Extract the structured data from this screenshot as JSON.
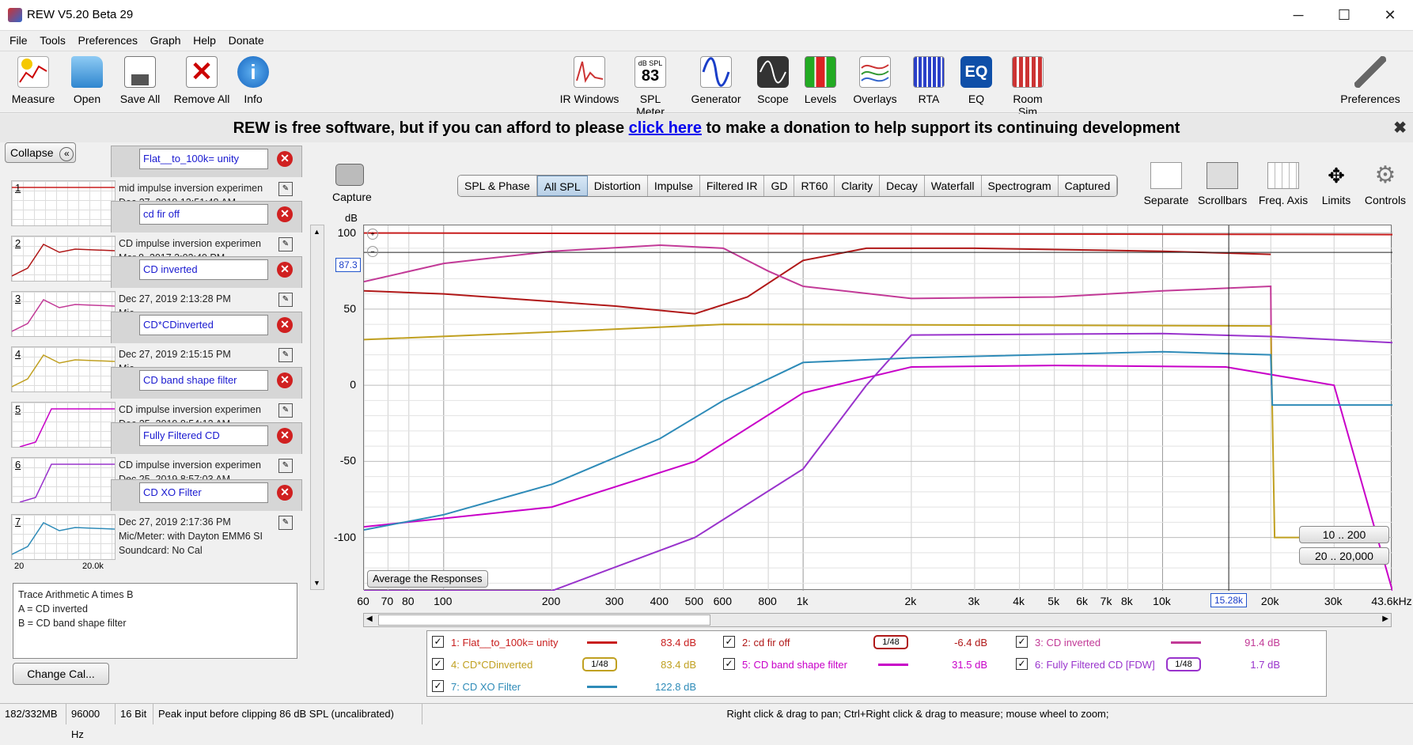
{
  "window": {
    "title": "REW V5.20 Beta 29",
    "minimize": "─",
    "maximize": "☐",
    "close": "✕"
  },
  "menu": [
    "File",
    "Tools",
    "Preferences",
    "Graph",
    "Help",
    "Donate"
  ],
  "toolbar": {
    "left": [
      "Measure",
      "Open",
      "Save All",
      "Remove All",
      "Info"
    ],
    "center": [
      {
        "label": "IR Windows",
        "icon": "ir-windows-icon"
      },
      {
        "label": "SPL Meter",
        "icon": "spl-meter-icon",
        "top": "dB SPL",
        "value": "83"
      },
      {
        "label": "Generator",
        "icon": "generator-icon"
      },
      {
        "label": "Scope",
        "icon": "scope-icon"
      },
      {
        "label": "Levels",
        "icon": "levels-icon"
      },
      {
        "label": "Overlays",
        "icon": "overlays-icon"
      },
      {
        "label": "RTA",
        "icon": "rta-icon"
      },
      {
        "label": "EQ",
        "icon": "eq-icon"
      },
      {
        "label": "Room Sim",
        "icon": "room-sim-icon"
      }
    ],
    "right": "Preferences"
  },
  "donate": {
    "before": "REW is free software, but if you can afford to please",
    "link": "click here",
    "after": "to make a donation to help support its continuing development",
    "close": "✖"
  },
  "panel": {
    "collapse": "Collapse",
    "measurements": [
      {
        "num": "1",
        "name": "Flat__to_100k= unity",
        "l1": "mid impulse inversion experimen",
        "l2": "Dec 27, 2019 12:51:48 AM"
      },
      {
        "num": "2",
        "name": "cd fir off",
        "l1": "CD impulse inversion experimen",
        "l2": "Mar 8, 2017 3:02:40 PM"
      },
      {
        "num": "3",
        "name": "CD inverted",
        "l1": "Dec 27, 2019 2:13:28 PM",
        "l2": "Mic"
      },
      {
        "num": "4",
        "name": "CD*CDinverted",
        "l1": "Dec 27, 2019 2:15:15 PM",
        "l2": "Mic"
      },
      {
        "num": "5",
        "name": "CD band shape filter",
        "l1": "CD impulse inversion experimen",
        "l2": "Dec 25, 2019 8:54:12 AM"
      },
      {
        "num": "6",
        "name": "Fully Filtered CD",
        "l1": "CD impulse inversion experimen",
        "l2": "Dec 25, 2019 8:57:03 AM"
      },
      {
        "num": "7",
        "name": "CD XO Filter",
        "l1": "Dec 27, 2019 2:17:36 PM",
        "l2": "Mic/Meter: with Dayton EMM6 SI",
        "l3": "Soundcard: No Cal",
        "tmin": "20",
        "tmax": "20.0k"
      }
    ],
    "arith": [
      "Trace Arithmetic A times B",
      "A = CD inverted",
      "B = CD band shape filter"
    ],
    "changecal": "Change Cal..."
  },
  "graph": {
    "capture": "Capture",
    "tabs": [
      "SPL & Phase",
      "All SPL",
      "Distortion",
      "Impulse",
      "Filtered IR",
      "GD",
      "RT60",
      "Clarity",
      "Decay",
      "Waterfall",
      "Spectrogram",
      "Captured"
    ],
    "selected_tab": "All SPL",
    "tools": [
      "Separate",
      "Scrollbars",
      "Freq. Axis",
      "Limits",
      "Controls"
    ],
    "yunit": "dB",
    "cursor_level": "87.3",
    "cursor_freq": "15.28k",
    "avg_button": "Average the Responses",
    "range1": "10 .. 200",
    "range2": "20 .. 20,000"
  },
  "chart_data": {
    "type": "line",
    "xlabel": "",
    "ylabel": "dB",
    "xscale": "log",
    "xlim": [
      60,
      43600
    ],
    "ylim": [
      -135,
      105
    ],
    "xticks": [
      "60",
      "70",
      "80",
      "100",
      "200",
      "300",
      "400",
      "500",
      "600",
      "800",
      "1k",
      "2k",
      "3k",
      "4k",
      "5k",
      "6k",
      "7k",
      "8k",
      "10k",
      "20k",
      "30k",
      "43.6kHz"
    ],
    "yticks": [
      "100",
      "50",
      "0",
      "-50",
      "-100"
    ],
    "series": [
      {
        "name": "1: Flat__to_100k= unity",
        "color": "#c81e1e",
        "points": [
          [
            60,
            100
          ],
          [
            43600,
            99
          ]
        ]
      },
      {
        "name": "2: cd fir off",
        "color": "#b01818",
        "points": [
          [
            60,
            62
          ],
          [
            100,
            60
          ],
          [
            200,
            55
          ],
          [
            300,
            52
          ],
          [
            500,
            47
          ],
          [
            700,
            58
          ],
          [
            1000,
            82
          ],
          [
            1500,
            90
          ],
          [
            3000,
            90
          ],
          [
            10000,
            88
          ],
          [
            20000,
            86
          ]
        ]
      },
      {
        "name": "3: CD inverted",
        "color": "#c23a97",
        "points": [
          [
            60,
            68
          ],
          [
            100,
            80
          ],
          [
            200,
            88
          ],
          [
            400,
            92
          ],
          [
            600,
            90
          ],
          [
            800,
            75
          ],
          [
            1000,
            65
          ],
          [
            2000,
            57
          ],
          [
            5000,
            58
          ],
          [
            10000,
            62
          ],
          [
            20000,
            65
          ],
          [
            20100,
            0
          ]
        ]
      },
      {
        "name": "4: CD*CDinverted",
        "color": "#c0a020",
        "points": [
          [
            60,
            30
          ],
          [
            200,
            35
          ],
          [
            600,
            40
          ],
          [
            20000,
            39
          ],
          [
            20500,
            -100
          ],
          [
            30000,
            -100
          ]
        ]
      },
      {
        "name": "5: CD band shape filter",
        "color": "#c800c8",
        "points": [
          [
            60,
            -93
          ],
          [
            200,
            -80
          ],
          [
            500,
            -50
          ],
          [
            1000,
            -5
          ],
          [
            2000,
            12
          ],
          [
            5000,
            13
          ],
          [
            15000,
            12
          ],
          [
            30000,
            0
          ],
          [
            43600,
            -135
          ]
        ]
      },
      {
        "name": "6: Fully Filtered CD [FDW]",
        "color": "#9933cc",
        "points": [
          [
            60,
            -135
          ],
          [
            200,
            -135
          ],
          [
            500,
            -100
          ],
          [
            1000,
            -55
          ],
          [
            1500,
            0
          ],
          [
            2000,
            33
          ],
          [
            10000,
            34
          ],
          [
            20000,
            32
          ],
          [
            43600,
            28
          ]
        ]
      },
      {
        "name": "7: CD XO Filter",
        "color": "#2e8bb8",
        "points": [
          [
            60,
            -95
          ],
          [
            100,
            -85
          ],
          [
            200,
            -65
          ],
          [
            400,
            -35
          ],
          [
            600,
            -10
          ],
          [
            1000,
            15
          ],
          [
            2000,
            18
          ],
          [
            10000,
            22
          ],
          [
            20000,
            20
          ],
          [
            20200,
            -13
          ],
          [
            43600,
            -13
          ]
        ]
      }
    ]
  },
  "legend": [
    {
      "label": "1: Flat__to_100k= unity",
      "value": "83.4 dB",
      "color": "#c81e1e",
      "smooth": ""
    },
    {
      "label": "2: cd fir off",
      "value": "-6.4 dB",
      "color": "#b01818",
      "smooth": "1/48"
    },
    {
      "label": "3: CD inverted",
      "value": "91.4 dB",
      "color": "#c23a97",
      "smooth": ""
    },
    {
      "label": "4: CD*CDinverted",
      "value": "83.4 dB",
      "color": "#c0a020",
      "smooth": "1/48"
    },
    {
      "label": "5: CD band shape filter",
      "value": "31.5 dB",
      "color": "#c800c8",
      "smooth": ""
    },
    {
      "label": "6: Fully Filtered CD [FDW]",
      "value": "1.7 dB",
      "color": "#9933cc",
      "smooth": "1/48"
    },
    {
      "label": "7: CD XO Filter",
      "value": "122.8 dB",
      "color": "#2e8bb8",
      "smooth": ""
    }
  ],
  "status": {
    "mem": "182/332MB",
    "rate": "96000 Hz",
    "bits": "16 Bit",
    "peak": "Peak input before clipping 86 dB SPL (uncalibrated)",
    "hint": "Right click & drag to pan; Ctrl+Right click & drag to measure; mouse wheel to zoom;"
  }
}
